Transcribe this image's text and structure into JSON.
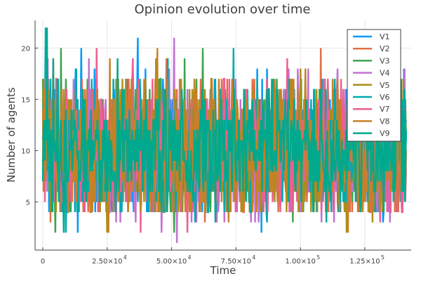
{
  "chart_data": {
    "type": "line",
    "title": "Opinion evolution over time",
    "xlabel": "Time",
    "ylabel": "Number of agents",
    "xlim": [
      -3000,
      143000
    ],
    "ylim": [
      0.3,
      22.7
    ],
    "x_ticks": [
      {
        "value": 0,
        "mantissa": "0",
        "exp": ""
      },
      {
        "value": 25000,
        "mantissa": "2.50×10",
        "exp": "4"
      },
      {
        "value": 50000,
        "mantissa": "5.00×10",
        "exp": "4"
      },
      {
        "value": 75000,
        "mantissa": "7.50×10",
        "exp": "4"
      },
      {
        "value": 100000,
        "mantissa": "1.00×10",
        "exp": "5"
      },
      {
        "value": 125000,
        "mantissa": "1.25×10",
        "exp": "5"
      }
    ],
    "y_ticks": [
      5,
      10,
      15,
      20
    ],
    "grid": true,
    "legend_position": "top-right",
    "x_range": [
      0,
      141000
    ],
    "series": [
      {
        "name": "V1",
        "color": "#009af9",
        "mean": 10,
        "spread": 3.3,
        "min": 2,
        "max": 21,
        "peaks": [
          [
            37000,
            21
          ],
          [
            132000,
            17
          ],
          [
            15000,
            20
          ]
        ],
        "troughs": [
          [
            13500,
            2
          ],
          [
            85000,
            2
          ],
          [
            132000,
            3
          ]
        ]
      },
      {
        "name": "V2",
        "color": "#e26f46",
        "mean": 10,
        "spread": 3.3,
        "min": 2,
        "max": 20,
        "peaks": [
          [
            108000,
            20
          ],
          [
            4000,
            19
          ],
          [
            48000,
            19
          ]
        ],
        "troughs": [
          [
            3000,
            3
          ],
          [
            120000,
            4
          ],
          [
            63000,
            3
          ]
        ]
      },
      {
        "name": "V3",
        "color": "#3da44d",
        "mean": 10,
        "spread": 3.3,
        "min": 2,
        "max": 20,
        "peaks": [
          [
            7000,
            20
          ],
          [
            62000,
            20
          ],
          [
            55000,
            19
          ]
        ],
        "troughs": [
          [
            5000,
            2
          ],
          [
            51000,
            2
          ],
          [
            97000,
            3
          ]
        ]
      },
      {
        "name": "V4",
        "color": "#c271d2",
        "mean": 10,
        "spread": 3.3,
        "min": 1,
        "max": 21,
        "peaks": [
          [
            51000,
            21
          ],
          [
            2000,
            19
          ],
          [
            18000,
            19
          ]
        ],
        "troughs": [
          [
            52000,
            1
          ],
          [
            46000,
            2
          ],
          [
            30000,
            3
          ]
        ]
      },
      {
        "name": "V5",
        "color": "#ac8e18",
        "mean": 10,
        "spread": 3.3,
        "min": 2,
        "max": 20,
        "peaks": [
          [
            44000,
            19
          ],
          [
            100000,
            18
          ],
          [
            140000,
            17
          ]
        ],
        "troughs": [
          [
            25000,
            2
          ],
          [
            118000,
            2
          ],
          [
            128000,
            3
          ]
        ]
      },
      {
        "name": "V6",
        "color": "#00a9ad",
        "mean": 10,
        "spread": 3.3,
        "min": 2,
        "max": 22,
        "peaks": [
          [
            1000,
            22
          ],
          [
            74000,
            20
          ],
          [
            48500,
            19
          ]
        ],
        "troughs": [
          [
            9000,
            2
          ],
          [
            59000,
            3
          ],
          [
            87000,
            3
          ]
        ]
      },
      {
        "name": "V7",
        "color": "#ed5e93",
        "mean": 10,
        "spread": 3.3,
        "min": 2,
        "max": 20,
        "peaks": [
          [
            21000,
            20
          ],
          [
            35000,
            19
          ],
          [
            95000,
            19
          ]
        ],
        "troughs": [
          [
            38000,
            2
          ],
          [
            56000,
            2
          ],
          [
            131000,
            3
          ]
        ]
      },
      {
        "name": "V8",
        "color": "#c68125",
        "mean": 10,
        "spread": 3.3,
        "min": 2,
        "max": 20,
        "peaks": [
          [
            44500,
            20
          ],
          [
            26000,
            19
          ],
          [
            102000,
            18
          ]
        ],
        "troughs": [
          [
            25500,
            2
          ],
          [
            118500,
            2
          ],
          [
            72000,
            3
          ]
        ]
      },
      {
        "name": "V9",
        "color": "#00a98d",
        "mean": 10,
        "spread": 3.0,
        "min": 2,
        "max": 22,
        "peaks": [
          [
            1500,
            22
          ],
          [
            89000,
            17
          ],
          [
            139000,
            17
          ]
        ],
        "troughs": [
          [
            8000,
            2
          ],
          [
            67000,
            3
          ],
          [
            110000,
            3
          ]
        ]
      }
    ]
  }
}
